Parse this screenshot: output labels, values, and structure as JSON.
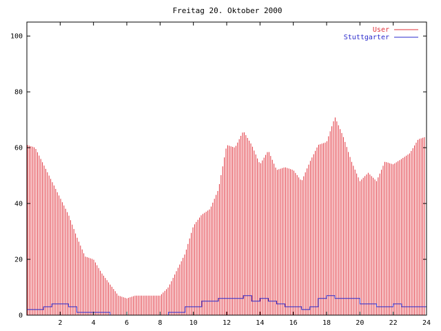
{
  "chart_data": {
    "type": "bar",
    "title": "Freitag 20. Oktober 2000",
    "xlabel": "",
    "ylabel": "",
    "xlim": [
      0,
      24
    ],
    "ylim": [
      0,
      105
    ],
    "xticks": [
      2,
      4,
      6,
      8,
      10,
      12,
      14,
      16,
      18,
      20,
      22,
      24
    ],
    "yticks": [
      0,
      20,
      40,
      60,
      80,
      100
    ],
    "legend_position": "top-right",
    "grid": false,
    "series": [
      {
        "name": "User",
        "type": "bar",
        "color": "#e0303a",
        "x": [
          0.0,
          0.5,
          1.0,
          1.5,
          2.0,
          2.5,
          3.0,
          3.5,
          4.0,
          4.5,
          5.0,
          5.5,
          6.0,
          6.5,
          7.0,
          7.5,
          8.0,
          8.5,
          9.0,
          9.5,
          10.0,
          10.5,
          11.0,
          11.5,
          12.0,
          12.5,
          13.0,
          13.5,
          14.0,
          14.5,
          15.0,
          15.5,
          16.0,
          16.5,
          17.0,
          17.5,
          18.0,
          18.5,
          19.0,
          19.5,
          20.0,
          20.5,
          21.0,
          21.5,
          22.0,
          22.5,
          23.0,
          23.5,
          24.0
        ],
        "values": [
          61,
          60,
          54,
          48,
          42,
          36,
          28,
          21,
          20,
          15,
          11,
          7,
          6,
          7,
          7,
          7,
          7,
          10,
          16,
          22,
          32,
          36,
          38,
          45,
          61,
          60,
          66,
          61,
          54,
          59,
          52,
          53,
          52,
          48,
          55,
          61,
          62,
          71,
          64,
          55,
          48,
          51,
          48,
          55,
          54,
          56,
          58,
          63,
          64
        ]
      },
      {
        "name": "Stuttgarter",
        "type": "line",
        "color": "#2a2acc",
        "x": [
          0.0,
          0.5,
          1.0,
          1.5,
          2.0,
          2.5,
          3.0,
          3.5,
          4.0,
          4.5,
          5.0,
          5.5,
          6.0,
          6.5,
          7.0,
          7.5,
          8.0,
          8.5,
          9.0,
          9.5,
          10.0,
          10.5,
          11.0,
          11.5,
          12.0,
          12.5,
          13.0,
          13.5,
          14.0,
          14.5,
          15.0,
          15.5,
          16.0,
          16.5,
          17.0,
          17.5,
          18.0,
          18.5,
          19.0,
          19.5,
          20.0,
          20.5,
          21.0,
          21.5,
          22.0,
          22.5,
          23.0,
          23.5,
          24.0
        ],
        "values": [
          2,
          2,
          3,
          4,
          4,
          3,
          1,
          1,
          1,
          1,
          0,
          0,
          0,
          0,
          0,
          0,
          0,
          1,
          1,
          3,
          3,
          5,
          5,
          6,
          6,
          6,
          7,
          5,
          6,
          5,
          4,
          3,
          3,
          2,
          3,
          6,
          7,
          6,
          6,
          6,
          4,
          4,
          3,
          3,
          4,
          3,
          3,
          3,
          2
        ]
      }
    ]
  }
}
